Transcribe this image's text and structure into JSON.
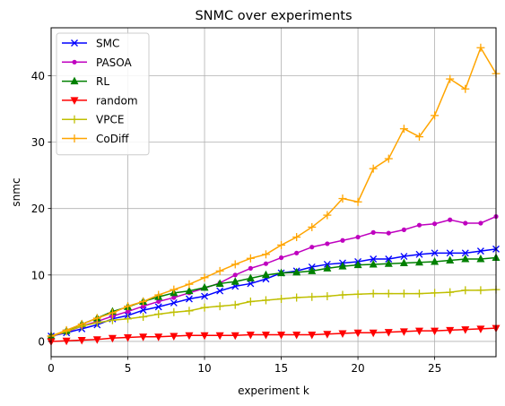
{
  "chart_data": {
    "type": "line",
    "title": "SNMC over experiments",
    "xlabel": "experiment k",
    "ylabel": "snmc",
    "xlim": [
      0,
      29
    ],
    "ylim": [
      -2.3,
      47.2
    ],
    "xticks": [
      0,
      5,
      10,
      15,
      20,
      25
    ],
    "yticks": [
      0,
      10,
      20,
      30,
      40
    ],
    "grid": true,
    "legend_position": "top-left",
    "x": [
      0,
      1,
      2,
      3,
      4,
      5,
      6,
      7,
      8,
      9,
      10,
      11,
      12,
      13,
      14,
      15,
      16,
      17,
      18,
      19,
      20,
      21,
      22,
      23,
      24,
      25,
      26,
      27,
      28,
      29
    ],
    "series": [
      {
        "name": "SMC",
        "color": "#0000ff",
        "marker": "x",
        "values": [
          0.8,
          1.3,
          1.9,
          2.5,
          3.4,
          3.9,
          4.7,
          5.2,
          5.8,
          6.4,
          6.8,
          7.6,
          8.3,
          8.7,
          9.4,
          10.3,
          10.6,
          11.2,
          11.6,
          11.8,
          12.0,
          12.4,
          12.4,
          12.8,
          13.1,
          13.3,
          13.3,
          13.3,
          13.6,
          13.9
        ]
      },
      {
        "name": "PASOA",
        "color": "#bf00bf",
        "marker": "dot",
        "values": [
          0.8,
          1.4,
          2.3,
          3.0,
          3.8,
          4.5,
          5.3,
          6.0,
          6.6,
          7.3,
          8.0,
          8.8,
          10.0,
          11.0,
          11.7,
          12.6,
          13.3,
          14.2,
          14.7,
          15.2,
          15.7,
          16.4,
          16.3,
          16.8,
          17.5,
          17.7,
          18.3,
          17.8,
          17.8,
          18.8
        ]
      },
      {
        "name": "RL",
        "color": "#008000",
        "marker": "triangle",
        "values": [
          0.8,
          1.6,
          2.6,
          3.5,
          4.5,
          5.2,
          6.0,
          6.7,
          7.3,
          7.6,
          8.1,
          8.7,
          9.0,
          9.5,
          10.0,
          10.3,
          10.4,
          10.6,
          11.0,
          11.3,
          11.5,
          11.6,
          11.7,
          11.8,
          11.9,
          12.0,
          12.2,
          12.4,
          12.4,
          12.6
        ]
      },
      {
        "name": "random",
        "color": "#ff0000",
        "marker": "triangle-down",
        "values": [
          0.0,
          0.1,
          0.2,
          0.3,
          0.5,
          0.6,
          0.7,
          0.7,
          0.8,
          0.9,
          0.9,
          0.9,
          0.9,
          1.0,
          1.0,
          1.0,
          1.0,
          1.0,
          1.1,
          1.2,
          1.3,
          1.3,
          1.4,
          1.5,
          1.6,
          1.6,
          1.7,
          1.8,
          1.9,
          2.0
        ]
      },
      {
        "name": "VPCE",
        "color": "#bfbf00",
        "marker": "plus",
        "values": [
          0.8,
          1.5,
          2.3,
          2.8,
          3.2,
          3.4,
          3.7,
          4.1,
          4.4,
          4.6,
          5.1,
          5.3,
          5.5,
          6.0,
          6.2,
          6.4,
          6.6,
          6.7,
          6.8,
          7.0,
          7.1,
          7.2,
          7.2,
          7.2,
          7.2,
          7.3,
          7.4,
          7.7,
          7.7,
          7.8
        ]
      },
      {
        "name": "CoDiff",
        "color": "#ffa500",
        "marker": "plus",
        "values": [
          0.8,
          1.7,
          2.6,
          3.5,
          4.3,
          5.3,
          6.0,
          7.0,
          7.8,
          8.6,
          9.6,
          10.6,
          11.6,
          12.5,
          13.1,
          14.5,
          15.7,
          17.2,
          19.0,
          21.5,
          21.0,
          26.0,
          27.5,
          32.0,
          30.8,
          34.0,
          39.5,
          38.0,
          44.2,
          40.3
        ]
      }
    ]
  }
}
